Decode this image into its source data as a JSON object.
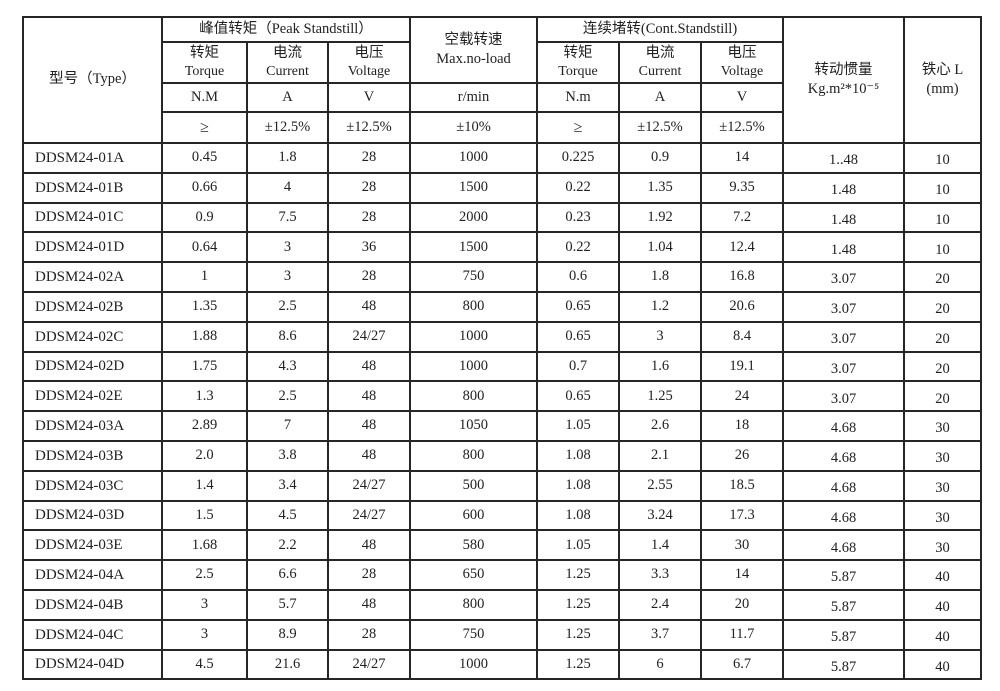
{
  "table": {
    "header": {
      "type_label": "型号（Type）",
      "peak_group": "峰值转矩（Peak Standstill）",
      "noload": {
        "cn": "空载转速",
        "en": "Max.no-load"
      },
      "cont_group": "连续堵转(Cont.Standstill)",
      "inertia": {
        "cn": "转动惯量",
        "unit": "Kg.m²*10⁻⁵"
      },
      "core": {
        "cn": "铁心 L",
        "unit": "(mm)"
      },
      "peak_cols": [
        {
          "cn": "转矩",
          "en": "Torque"
        },
        {
          "cn": "电流",
          "en": "Current"
        },
        {
          "cn": "电压",
          "en": "Voltage"
        }
      ],
      "cont_cols": [
        {
          "cn": "转矩",
          "en": "Torque"
        },
        {
          "cn": "电流",
          "en": "Current"
        },
        {
          "cn": "电压",
          "en": "Voltage"
        }
      ],
      "units": [
        "N.M",
        "A",
        "V",
        "r/min",
        "N.m",
        "A",
        "V"
      ],
      "tolerances": [
        "≥",
        "±12.5%",
        "±12.5%",
        "±10%",
        "≥",
        "±12.5%",
        "±12.5%"
      ]
    },
    "rows": [
      [
        "DDSM24-01A",
        "0.45",
        "1.8",
        "28",
        "1000",
        "0.225",
        "0.9",
        "14",
        "1..48",
        "10"
      ],
      [
        "DDSM24-01B",
        "0.66",
        "4",
        "28",
        "1500",
        "0.22",
        "1.35",
        "9.35",
        "1.48",
        "10"
      ],
      [
        "DDSM24-01C",
        "0.9",
        "7.5",
        "28",
        "2000",
        "0.23",
        "1.92",
        "7.2",
        "1.48",
        "10"
      ],
      [
        "DDSM24-01D",
        "0.64",
        "3",
        "36",
        "1500",
        "0.22",
        "1.04",
        "12.4",
        "1.48",
        "10"
      ],
      [
        "DDSM24-02A",
        "1",
        "3",
        "28",
        "750",
        "0.6",
        "1.8",
        "16.8",
        "3.07",
        "20"
      ],
      [
        "DDSM24-02B",
        "1.35",
        "2.5",
        "48",
        "800",
        "0.65",
        "1.2",
        "20.6",
        "3.07",
        "20"
      ],
      [
        "DDSM24-02C",
        "1.88",
        "8.6",
        "24/27",
        "1000",
        "0.65",
        "3",
        "8.4",
        "3.07",
        "20"
      ],
      [
        "DDSM24-02D",
        "1.75",
        "4.3",
        "48",
        "1000",
        "0.7",
        "1.6",
        "19.1",
        "3.07",
        "20"
      ],
      [
        "DDSM24-02E",
        "1.3",
        "2.5",
        "48",
        "800",
        "0.65",
        "1.25",
        "24",
        "3.07",
        "20"
      ],
      [
        "DDSM24-03A",
        "2.89",
        "7",
        "48",
        "1050",
        "1.05",
        "2.6",
        "18",
        "4.68",
        "30"
      ],
      [
        "DDSM24-03B",
        "2.0",
        "3.8",
        "48",
        "800",
        "1.08",
        "2.1",
        "26",
        "4.68",
        "30"
      ],
      [
        "DDSM24-03C",
        "1.4",
        "3.4",
        "24/27",
        "500",
        "1.08",
        "2.55",
        "18.5",
        "4.68",
        "30"
      ],
      [
        "DDSM24-03D",
        "1.5",
        "4.5",
        "24/27",
        "600",
        "1.08",
        "3.24",
        "17.3",
        "4.68",
        "30"
      ],
      [
        "DDSM24-03E",
        "1.68",
        "2.2",
        "48",
        "580",
        "1.05",
        "1.4",
        "30",
        "4.68",
        "30"
      ],
      [
        "DDSM24-04A",
        "2.5",
        "6.6",
        "28",
        "650",
        "1.25",
        "3.3",
        "14",
        "5.87",
        "40"
      ],
      [
        "DDSM24-04B",
        "3",
        "5.7",
        "48",
        "800",
        "1.25",
        "2.4",
        "20",
        "5.87",
        "40"
      ],
      [
        "DDSM24-04C",
        "3",
        "8.9",
        "28",
        "750",
        "1.25",
        "3.7",
        "11.7",
        "5.87",
        "40"
      ],
      [
        "DDSM24-04D",
        "4.5",
        "21.6",
        "24/27",
        "1000",
        "1.25",
        "6",
        "6.7",
        "5.87",
        "40"
      ]
    ]
  }
}
